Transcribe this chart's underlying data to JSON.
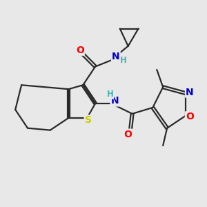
{
  "background_color": "#e8e8e8",
  "bond_color": "#2a2a2a",
  "bond_width": 1.6,
  "atom_colors": {
    "O": "#ff0000",
    "N": "#0000cc",
    "S": "#cccc00",
    "H_label": "#4db3b3",
    "C": "#2a2a2a"
  },
  "figsize": [
    3.0,
    3.0
  ],
  "dpi": 100
}
